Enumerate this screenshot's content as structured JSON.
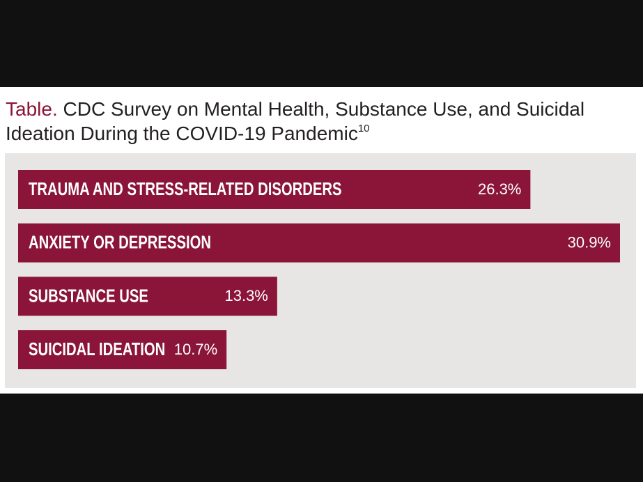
{
  "chart_data": {
    "type": "bar",
    "orientation": "horizontal",
    "title_label": "Table.",
    "title": "CDC Survey on Mental Health, Substance Use, and Suicidal Ideation During the COVID-19 Pandemic",
    "title_note": "10",
    "categories": [
      "TRAUMA AND STRESS-RELATED DISORDERS",
      "ANXIETY OR DEPRESSION",
      "SUBSTANCE USE",
      "SUICIDAL IDEATION"
    ],
    "values": [
      26.3,
      30.9,
      13.3,
      10.7
    ],
    "value_labels": [
      "26.3%",
      "30.9%",
      "13.3%",
      "10.7%"
    ],
    "color": "#8a1538"
  }
}
